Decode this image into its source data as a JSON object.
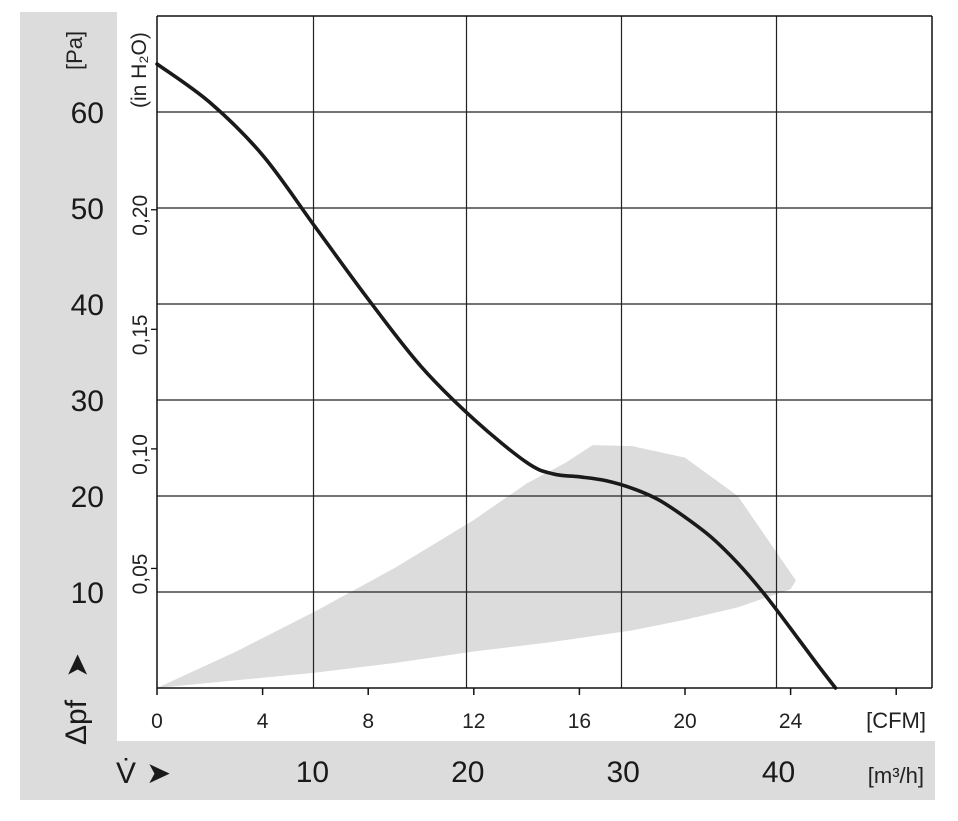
{
  "chart_data": {
    "type": "line",
    "title": "",
    "x_axis_primary": {
      "label": "[CFM]",
      "range": [
        0,
        29.3
      ],
      "ticks": [
        "0",
        "4",
        "8",
        "12",
        "16",
        "20",
        "24"
      ]
    },
    "x_axis_secondary": {
      "symbol": "V̇",
      "label": "[m³/h]",
      "ticks": [
        "10",
        "20",
        "30",
        "40"
      ]
    },
    "y_axis_primary": {
      "symbol": "Δpf",
      "label": "[Pa]",
      "range": [
        0,
        70
      ],
      "ticks": [
        "10",
        "20",
        "30",
        "40",
        "50",
        "60"
      ]
    },
    "y_axis_secondary": {
      "label": "(in H₂O)",
      "ticks": [
        "0,05",
        "0,10",
        "0,15",
        "0,20"
      ]
    },
    "grid": true,
    "series": [
      {
        "name": "",
        "color": "#1a1a1a",
        "x_unit": "CFM",
        "y_unit": "Pa",
        "x": [
          0,
          2,
          4,
          6,
          8,
          10,
          12,
          14,
          15,
          16,
          17,
          18,
          19,
          20,
          21,
          22,
          23,
          24,
          25,
          25.7
        ],
        "y": [
          65,
          61,
          55.5,
          48,
          40.5,
          33.5,
          28,
          23.5,
          22.3,
          22.0,
          21.6,
          20.8,
          19.6,
          17.8,
          15.7,
          13,
          9.8,
          6.2,
          2.5,
          0
        ]
      }
    ],
    "shaded_region": {
      "description_color": "#dcdcdc",
      "x": [
        0,
        3,
        6,
        9,
        12,
        14,
        15.5,
        16.5,
        18,
        20,
        22,
        24.2,
        24,
        22,
        20,
        18,
        15,
        12,
        9,
        6,
        3,
        0
      ],
      "y": [
        0,
        3.8,
        8,
        12.5,
        17.5,
        21.3,
        23.5,
        25.3,
        25.2,
        24,
        20,
        11.2,
        10.3,
        8.4,
        7.1,
        6,
        4.8,
        3.8,
        2.6,
        1.6,
        0.8,
        0
      ]
    }
  }
}
